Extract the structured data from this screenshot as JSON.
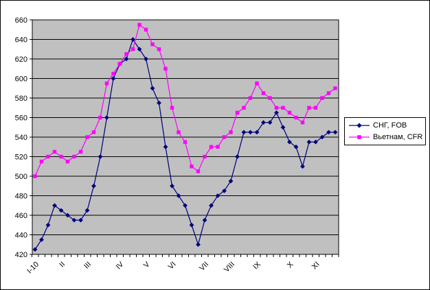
{
  "chart_data": {
    "type": "line",
    "title": "",
    "xlabel": "",
    "ylabel": "",
    "ylim": [
      420,
      660
    ],
    "ytick_step": 20,
    "yticks": [
      420,
      440,
      460,
      480,
      500,
      520,
      540,
      560,
      580,
      600,
      620,
      640,
      660
    ],
    "grid": "horizontal",
    "plot_bg": "#c0c0c0",
    "grid_color": "#000000",
    "legend_position": "right",
    "x_labels": [
      {
        "label": "I-10",
        "point_index": 0
      },
      {
        "label": "II",
        "point_index": 4
      },
      {
        "label": "III",
        "point_index": 8
      },
      {
        "label": "IV",
        "point_index": 13
      },
      {
        "label": "V",
        "point_index": 17
      },
      {
        "label": "VI",
        "point_index": 21
      },
      {
        "label": "VII",
        "point_index": 26
      },
      {
        "label": "VIII",
        "point_index": 30
      },
      {
        "label": "IX",
        "point_index": 34
      },
      {
        "label": "X",
        "point_index": 39
      },
      {
        "label": "XI",
        "point_index": 43
      }
    ],
    "series": [
      {
        "id": "sng-fob",
        "name": "СНГ, FOB",
        "color": "#000080",
        "marker": "diamond",
        "values": [
          425,
          435,
          450,
          470,
          465,
          460,
          455,
          455,
          465,
          490,
          520,
          560,
          600,
          615,
          620,
          640,
          630,
          620,
          590,
          575,
          530,
          490,
          480,
          470,
          450,
          430,
          455,
          470,
          480,
          485,
          495,
          520,
          545,
          545,
          545,
          555,
          555,
          565,
          550,
          535,
          530,
          510,
          535,
          535,
          540,
          545,
          545
        ]
      },
      {
        "id": "vietnam-cfr",
        "name": "Вьетнам, CFR",
        "color": "#ff00ff",
        "marker": "square",
        "values": [
          500,
          515,
          520,
          525,
          520,
          515,
          520,
          525,
          540,
          545,
          560,
          595,
          605,
          615,
          625,
          630,
          655,
          650,
          635,
          630,
          610,
          570,
          545,
          535,
          510,
          505,
          520,
          530,
          530,
          540,
          545,
          565,
          570,
          580,
          595,
          585,
          580,
          570,
          570,
          565,
          560,
          555,
          570,
          570,
          580,
          585,
          590
        ]
      }
    ]
  }
}
